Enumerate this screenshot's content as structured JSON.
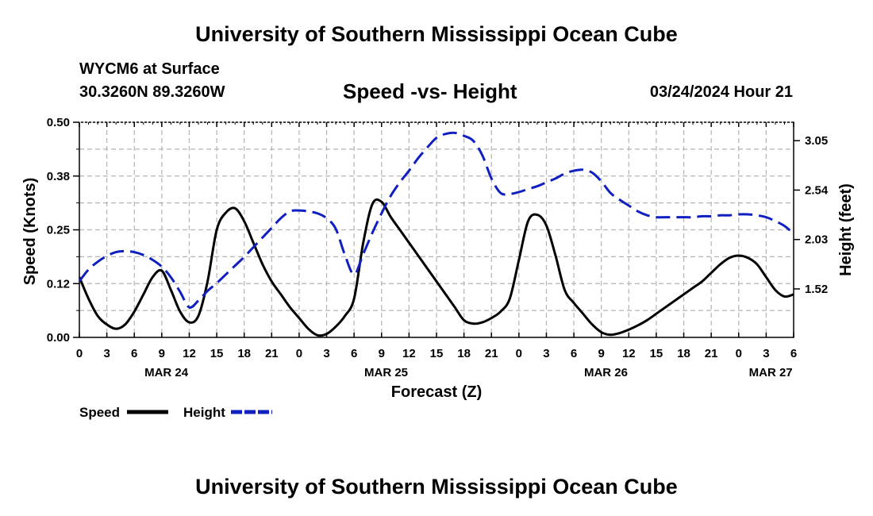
{
  "header": {
    "title": "University of Southern Mississippi Ocean Cube",
    "station": "WYCM6 at Surface",
    "coords": "30.3260N  89.3260W",
    "date": "03/24/2024 Hour 21",
    "footer_title": "University of Southern Mississippi Ocean Cube"
  },
  "chart_data": {
    "type": "line",
    "title": "Speed -vs- Height",
    "xlabel": "Forecast (Z)",
    "ylabel": "Speed (Knots)",
    "y2label": "Height (feet)",
    "xlim": [
      0,
      78
    ],
    "ylim": [
      0,
      0.5
    ],
    "y2lim": [
      1.02,
      3.24
    ],
    "x_ticks": [
      0,
      3,
      6,
      9,
      12,
      15,
      18,
      21,
      24,
      27,
      30,
      33,
      36,
      39,
      42,
      45,
      48,
      51,
      54,
      57,
      60,
      63,
      66,
      69,
      72,
      75,
      78
    ],
    "x_tick_labels": [
      "0",
      "3",
      "6",
      "9",
      "12",
      "15",
      "18",
      "21",
      "0",
      "3",
      "6",
      "9",
      "12",
      "15",
      "18",
      "21",
      "0",
      "3",
      "6",
      "9",
      "12",
      "15",
      "18",
      "21",
      "0",
      "3",
      "6"
    ],
    "y_ticks": [
      0.0,
      0.125,
      0.25,
      0.375,
      0.5
    ],
    "y_tick_labels": [
      "0.00",
      "0.12",
      "0.25",
      "0.38",
      "0.50"
    ],
    "y2_ticks": [
      1.52,
      2.03,
      2.54,
      3.05
    ],
    "y2_tick_labels": [
      "1.52",
      "2.03",
      "2.54",
      "3.05"
    ],
    "date_labels": [
      {
        "x": 9.5,
        "label": "MAR 24"
      },
      {
        "x": 33.5,
        "label": "MAR 25"
      },
      {
        "x": 57.5,
        "label": "MAR 26"
      },
      {
        "x": 75.5,
        "label": "MAR 27"
      }
    ],
    "grid": true,
    "series": [
      {
        "name": "Speed",
        "axis": "left",
        "color": "#000000",
        "dash": "solid",
        "x": [
          0,
          1,
          2,
          3,
          4,
          5,
          6,
          7,
          8,
          9,
          10,
          11,
          12,
          13,
          14,
          15,
          16,
          17,
          18,
          19,
          20,
          21,
          22,
          23,
          24,
          25,
          26,
          27,
          28,
          29,
          30,
          31,
          32,
          33,
          34,
          35,
          36,
          37,
          38,
          39,
          40,
          41,
          42,
          43,
          44,
          45,
          46,
          47,
          48,
          49,
          50,
          51,
          52,
          53,
          54,
          55,
          56,
          57,
          58,
          59,
          60,
          61,
          62,
          63,
          64,
          65,
          66,
          67,
          68,
          69,
          70,
          71,
          72,
          73,
          74,
          75,
          76,
          77,
          78
        ],
        "values": [
          0.14,
          0.09,
          0.05,
          0.03,
          0.02,
          0.03,
          0.06,
          0.1,
          0.14,
          0.155,
          0.11,
          0.06,
          0.035,
          0.05,
          0.13,
          0.25,
          0.29,
          0.3,
          0.27,
          0.22,
          0.17,
          0.13,
          0.1,
          0.07,
          0.045,
          0.02,
          0.005,
          0.008,
          0.025,
          0.05,
          0.09,
          0.22,
          0.31,
          0.315,
          0.28,
          0.25,
          0.22,
          0.19,
          0.16,
          0.13,
          0.1,
          0.07,
          0.04,
          0.032,
          0.035,
          0.045,
          0.06,
          0.09,
          0.18,
          0.27,
          0.285,
          0.26,
          0.19,
          0.11,
          0.08,
          0.055,
          0.03,
          0.012,
          0.006,
          0.01,
          0.018,
          0.028,
          0.04,
          0.055,
          0.07,
          0.085,
          0.1,
          0.115,
          0.13,
          0.15,
          0.17,
          0.185,
          0.19,
          0.185,
          0.17,
          0.14,
          0.11,
          0.095,
          0.1
        ],
        "label": "Speed"
      },
      {
        "name": "Height",
        "axis": "right",
        "color": "#1020c0",
        "dash": "dashed",
        "x": [
          0,
          1,
          2,
          3,
          4,
          5,
          6,
          7,
          8,
          9,
          10,
          11,
          12,
          13,
          14,
          15,
          16,
          17,
          18,
          19,
          20,
          21,
          22,
          23,
          24,
          25,
          26,
          27,
          28,
          29,
          30,
          31,
          32,
          33,
          34,
          35,
          36,
          37,
          38,
          39,
          40,
          41,
          42,
          43,
          44,
          45,
          46,
          47,
          48,
          49,
          50,
          51,
          52,
          53,
          54,
          55,
          56,
          57,
          58,
          59,
          60,
          61,
          62,
          63,
          64,
          65,
          66,
          67,
          68,
          69,
          70,
          71,
          72,
          73,
          74,
          75,
          76,
          77,
          78
        ],
        "values": [
          1.6,
          1.72,
          1.8,
          1.86,
          1.9,
          1.91,
          1.9,
          1.87,
          1.82,
          1.75,
          1.64,
          1.49,
          1.33,
          1.4,
          1.5,
          1.58,
          1.67,
          1.76,
          1.85,
          1.95,
          2.05,
          2.15,
          2.25,
          2.32,
          2.33,
          2.32,
          2.3,
          2.25,
          2.14,
          1.87,
          1.67,
          1.88,
          2.1,
          2.3,
          2.48,
          2.62,
          2.74,
          2.87,
          2.98,
          3.08,
          3.12,
          3.13,
          3.1,
          3.05,
          2.9,
          2.66,
          2.51,
          2.5,
          2.52,
          2.55,
          2.58,
          2.62,
          2.66,
          2.71,
          2.74,
          2.75,
          2.72,
          2.63,
          2.51,
          2.44,
          2.38,
          2.32,
          2.28,
          2.26,
          2.26,
          2.26,
          2.26,
          2.26,
          2.27,
          2.27,
          2.28,
          2.28,
          2.29,
          2.29,
          2.28,
          2.26,
          2.22,
          2.17,
          2.09
        ],
        "label": "Height"
      }
    ]
  }
}
